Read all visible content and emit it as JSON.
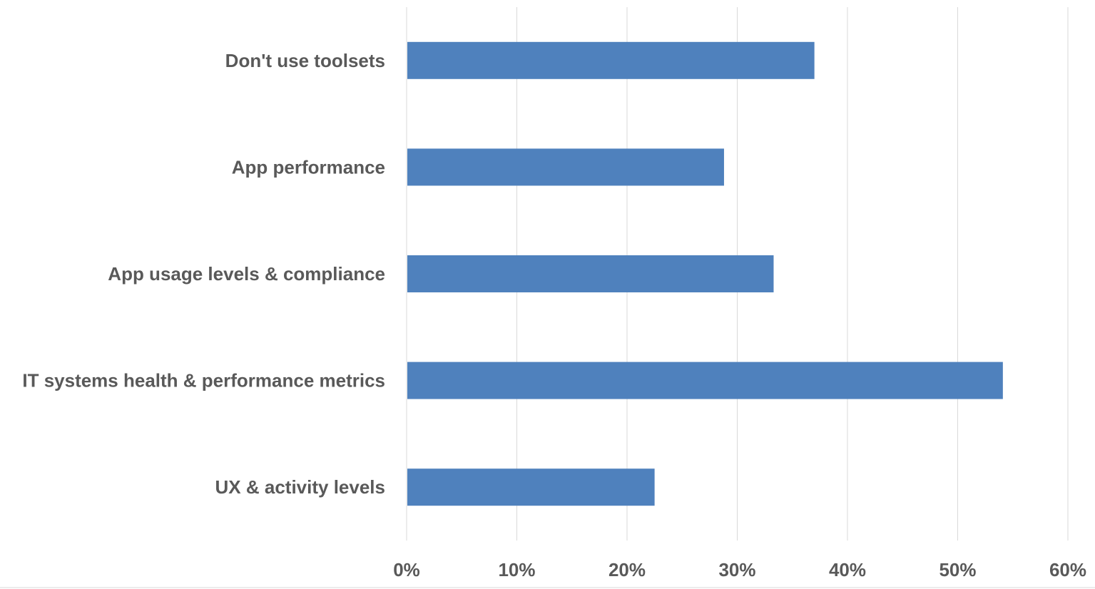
{
  "chart_data": {
    "type": "bar",
    "orientation": "horizontal",
    "title": "",
    "xlabel": "",
    "ylabel": "",
    "categories": [
      "Don't use toolsets",
      "App performance",
      "App usage levels & compliance",
      "IT systems health & performance metrics",
      "UX & activity levels"
    ],
    "values": [
      0.37,
      0.288,
      0.333,
      0.541,
      0.225
    ],
    "xlim": [
      0,
      0.6
    ],
    "x_ticks": [
      "0%",
      "10%",
      "20%",
      "30%",
      "40%",
      "50%",
      "60%"
    ],
    "grid": "vertical",
    "legend": "none",
    "bar_color": "#4f81bd"
  }
}
